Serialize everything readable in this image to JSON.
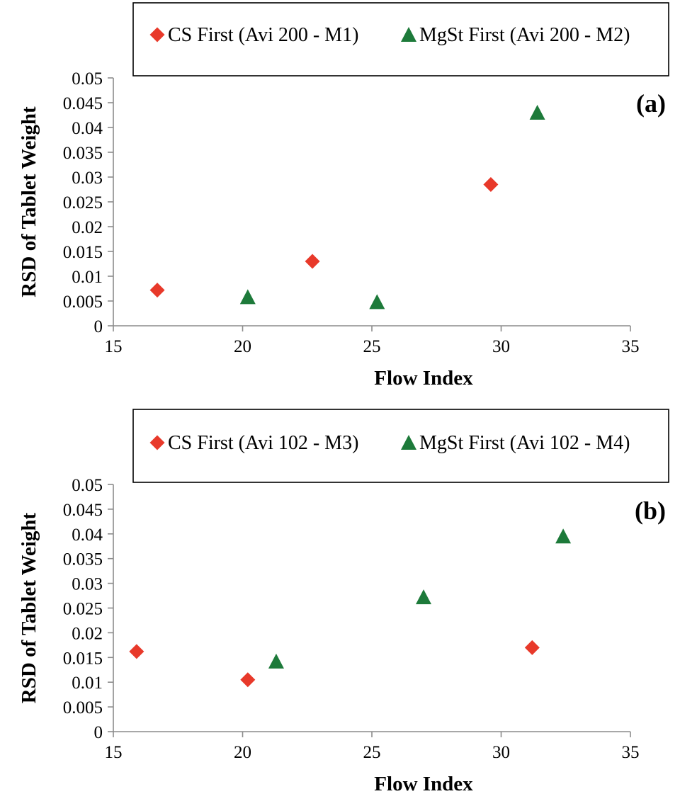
{
  "chart_data": [
    {
      "type": "scatter",
      "panel_label": "(a)",
      "xlabel": "Flow Index",
      "ylabel": "RSD of Tablet Weight",
      "xlim": [
        15,
        35
      ],
      "ylim": [
        0,
        0.05
      ],
      "x_ticks": [
        "15",
        "20",
        "25",
        "30",
        "35"
      ],
      "y_ticks": [
        "0",
        "0.005",
        "0.01",
        "0.015",
        "0.02",
        "0.025",
        "0.03",
        "0.035",
        "0.04",
        "0.045",
        "0.05"
      ],
      "legend_position": "top",
      "grid": false,
      "series": [
        {
          "name": "CS First (Avi 200 - M1)",
          "marker": "diamond",
          "color": "#e8392a",
          "points": [
            [
              16.7,
              0.0072
            ],
            [
              22.7,
              0.013
            ],
            [
              29.6,
              0.0285
            ]
          ]
        },
        {
          "name": "MgSt First (Avi 200 - M2)",
          "marker": "triangle",
          "color": "#1d7a3a",
          "points": [
            [
              20.2,
              0.0058
            ],
            [
              25.2,
              0.0048
            ],
            [
              31.4,
              0.043
            ]
          ]
        }
      ]
    },
    {
      "type": "scatter",
      "panel_label": "(b)",
      "xlabel": "Flow Index",
      "ylabel": "RSD of Tablet Weight",
      "xlim": [
        15,
        35
      ],
      "ylim": [
        0,
        0.05
      ],
      "x_ticks": [
        "15",
        "20",
        "25",
        "30",
        "35"
      ],
      "y_ticks": [
        "0",
        "0.005",
        "0.01",
        "0.015",
        "0.02",
        "0.025",
        "0.03",
        "0.035",
        "0.04",
        "0.045",
        "0.05"
      ],
      "legend_position": "top",
      "grid": false,
      "series": [
        {
          "name": "CS First (Avi 102 - M3)",
          "marker": "diamond",
          "color": "#e8392a",
          "points": [
            [
              15.9,
              0.0162
            ],
            [
              20.2,
              0.0105
            ],
            [
              31.2,
              0.017
            ]
          ]
        },
        {
          "name": "MgSt First (Avi 102 - M4)",
          "marker": "triangle",
          "color": "#1d7a3a",
          "points": [
            [
              21.3,
              0.0142
            ],
            [
              27.0,
              0.0272
            ],
            [
              32.4,
              0.0395
            ]
          ]
        }
      ]
    }
  ]
}
